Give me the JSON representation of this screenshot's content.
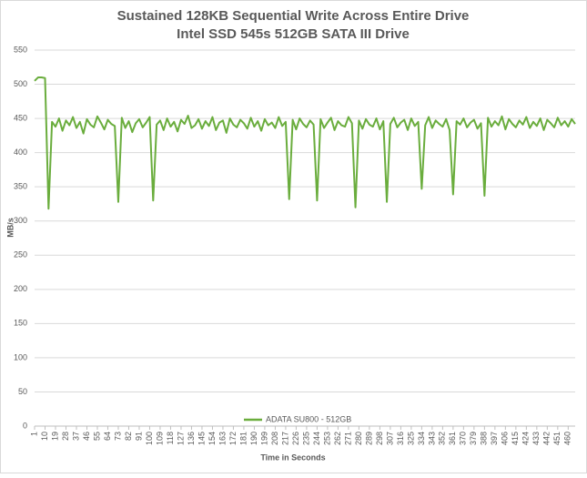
{
  "chart_data": {
    "type": "line",
    "title": "Sustained  128KB Sequential Write Across Entire Drive",
    "subtitle": "Intel SSD 545s 512GB SATA III Drive",
    "x_label": "Time in Seconds",
    "y_label": "MB/s",
    "xlim": [
      1,
      466
    ],
    "xticks": [
      1,
      10,
      19,
      28,
      37,
      46,
      55,
      64,
      73,
      82,
      91,
      100,
      109,
      118,
      127,
      136,
      145,
      154,
      163,
      172,
      181,
      190,
      199,
      208,
      217,
      226,
      235,
      244,
      253,
      262,
      271,
      280,
      289,
      298,
      307,
      316,
      325,
      334,
      343,
      352,
      361,
      370,
      379,
      388,
      397,
      406,
      415,
      424,
      433,
      442,
      451,
      460
    ],
    "ylim": [
      0,
      550
    ],
    "yticks": [
      0,
      50,
      100,
      150,
      200,
      250,
      300,
      350,
      400,
      450,
      500,
      550
    ],
    "grid": true,
    "legend": "bottom",
    "x": [
      1,
      4,
      7,
      10,
      13,
      16,
      19,
      22,
      25,
      28,
      31,
      34,
      37,
      40,
      43,
      46,
      49,
      52,
      55,
      58,
      61,
      64,
      67,
      70,
      73,
      76,
      79,
      82,
      85,
      88,
      91,
      94,
      97,
      100,
      103,
      106,
      109,
      112,
      115,
      118,
      121,
      124,
      127,
      130,
      133,
      136,
      139,
      142,
      145,
      148,
      151,
      154,
      157,
      160,
      163,
      166,
      169,
      172,
      175,
      178,
      181,
      184,
      187,
      190,
      193,
      196,
      199,
      202,
      205,
      208,
      211,
      214,
      217,
      220,
      223,
      226,
      229,
      232,
      235,
      238,
      241,
      244,
      247,
      250,
      253,
      256,
      259,
      262,
      265,
      268,
      271,
      274,
      277,
      280,
      283,
      286,
      289,
      292,
      295,
      298,
      301,
      304,
      307,
      310,
      313,
      316,
      319,
      322,
      325,
      328,
      331,
      334,
      337,
      340,
      343,
      346,
      349,
      352,
      355,
      358,
      361,
      364,
      367,
      370,
      373,
      376,
      379,
      382,
      385,
      388,
      391,
      394,
      397,
      400,
      403,
      406,
      409,
      412,
      415,
      418,
      421,
      424,
      427,
      430,
      433,
      436,
      439,
      442,
      445,
      448,
      451,
      454,
      457,
      460,
      463,
      466
    ],
    "series": [
      {
        "name": "ADATA SU800 - 512GB",
        "color": "#6aad3d",
        "values": [
          505,
          510,
          510,
          509,
          318,
          445,
          438,
          450,
          432,
          447,
          440,
          452,
          436,
          445,
          428,
          449,
          441,
          437,
          453,
          444,
          434,
          448,
          442,
          439,
          328,
          451,
          436,
          446,
          430,
          443,
          449,
          437,
          444,
          452,
          330,
          441,
          447,
          433,
          450,
          438,
          445,
          431,
          448,
          442,
          454,
          436,
          440,
          449,
          435,
          446,
          439,
          452,
          433,
          444,
          447,
          429,
          450,
          441,
          437,
          448,
          443,
          435,
          451,
          438,
          446,
          432,
          449,
          440,
          444,
          436,
          452,
          439,
          445,
          332,
          448,
          434,
          450,
          442,
          437,
          447,
          441,
          330,
          449,
          436,
          444,
          451,
          433,
          446,
          440,
          438,
          452,
          443,
          320,
          447,
          435,
          449,
          441,
          438,
          450,
          434,
          446,
          328,
          442,
          451,
          437,
          444,
          448,
          433,
          450,
          439,
          445,
          347,
          440,
          452,
          436,
          447,
          442,
          438,
          449,
          433,
          339,
          446,
          441,
          450,
          437,
          444,
          448,
          435,
          443,
          337,
          451,
          438,
          446,
          440,
          453,
          434,
          449,
          442,
          437,
          447,
          441,
          452,
          436,
          445,
          439,
          450,
          433,
          448,
          443,
          437,
          451,
          440,
          446,
          438,
          449,
          442
        ]
      }
    ]
  }
}
